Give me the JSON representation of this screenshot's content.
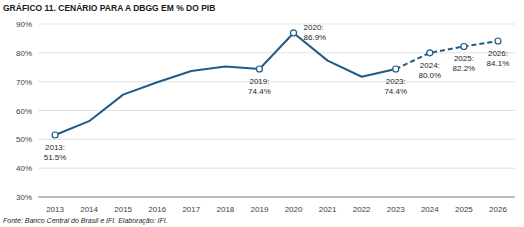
{
  "chart_data": {
    "type": "line",
    "title": "GRÁFICO 11. CENÁRIO PARA A DBGG EM % DO PIB",
    "source": "Fonte: Banco Central do Brasil e IFI. Elaboração: IFI.",
    "categories": [
      "2013",
      "2014",
      "2015",
      "2016",
      "2017",
      "2018",
      "2019",
      "2020",
      "2021",
      "2022",
      "2023",
      "2024",
      "2025",
      "2026"
    ],
    "series": [
      {
        "color": "#1f5c87",
        "line_style": "solid",
        "values": [
          51.5,
          56.3,
          65.5,
          69.8,
          73.7,
          75.3,
          74.4,
          86.9,
          77.3,
          71.7,
          74.4,
          null,
          null,
          null
        ]
      },
      {
        "color": "#1f5c87",
        "line_style": "dashed",
        "values": [
          null,
          null,
          null,
          null,
          null,
          null,
          null,
          null,
          null,
          null,
          74.4,
          80.0,
          82.2,
          84.1
        ]
      }
    ],
    "marker": "circle",
    "ylim": [
      30,
      90
    ],
    "yticks": [
      {
        "value": 30,
        "label": "30%"
      },
      {
        "value": 40,
        "label": "40%"
      },
      {
        "value": 50,
        "label": "50%"
      },
      {
        "value": 60,
        "label": "60%"
      },
      {
        "value": 70,
        "label": "70%"
      },
      {
        "value": 80,
        "label": "80%"
      },
      {
        "value": 90,
        "label": "90%"
      }
    ],
    "grid": true,
    "annotations": [
      {
        "category": "2013",
        "text": [
          "2013:",
          "51.5%"
        ]
      },
      {
        "category": "2019",
        "text": [
          "2019:",
          "74.4%"
        ]
      },
      {
        "category": "2020",
        "text": [
          "2020:",
          "86.9%"
        ]
      },
      {
        "category": "2023",
        "text": [
          "2023:",
          "74.4%"
        ]
      },
      {
        "category": "2024",
        "text": [
          "2024:",
          "80.0%"
        ]
      },
      {
        "category": "2025",
        "text": [
          "2025:",
          "82.2%"
        ]
      },
      {
        "category": "2026",
        "text": [
          "2026:",
          "84.1%"
        ]
      }
    ]
  }
}
